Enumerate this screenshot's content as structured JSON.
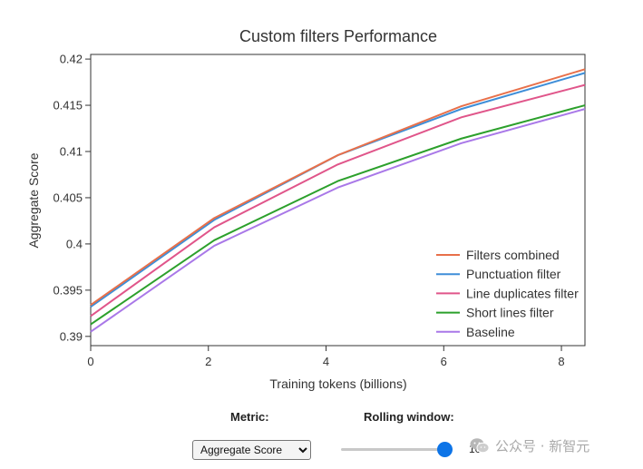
{
  "controls": {
    "metric_label": "Metric:",
    "metric_selected": "Aggregate Score",
    "rolling_label": "Rolling window:",
    "rolling_value": "10",
    "slider_fraction": 0.95
  },
  "watermark": {
    "text": "公众号 · 新智元"
  },
  "colors": {
    "Filters combined": "#e8704a",
    "Punctuation filter": "#3e8ed8",
    "Line duplicates filter": "#e0558a",
    "Short lines filter": "#2ca02c",
    "Baseline": "#a978e8"
  },
  "chart_data": {
    "type": "line",
    "title": "Custom filters Performance",
    "xlabel": "Training tokens (billions)",
    "ylabel": "Aggregate Score",
    "xlim": [
      0,
      8.4
    ],
    "ylim": [
      0.389,
      0.4205
    ],
    "xticks": [
      0,
      2,
      4,
      6,
      8
    ],
    "yticks": [
      0.39,
      0.395,
      0.4,
      0.405,
      0.41,
      0.415,
      0.42
    ],
    "ytick_labels": [
      "0.39",
      "0.395",
      "0.4",
      "0.405",
      "0.41",
      "0.415",
      "0.42"
    ],
    "grid": false,
    "legend_position": "bottom-right",
    "x": [
      0,
      2.1,
      4.2,
      6.3,
      8.4
    ],
    "series": [
      {
        "name": "Filters combined",
        "values": [
          0.3934,
          0.4028,
          0.4096,
          0.4149,
          0.4189
        ]
      },
      {
        "name": "Punctuation filter",
        "values": [
          0.3932,
          0.4026,
          0.4096,
          0.4146,
          0.4185
        ]
      },
      {
        "name": "Line duplicates filter",
        "values": [
          0.3922,
          0.4018,
          0.4086,
          0.4137,
          0.4172
        ]
      },
      {
        "name": "Short lines filter",
        "values": [
          0.3913,
          0.4004,
          0.4068,
          0.4114,
          0.415
        ]
      },
      {
        "name": "Baseline",
        "values": [
          0.3905,
          0.3998,
          0.4061,
          0.4109,
          0.4146
        ]
      }
    ]
  }
}
